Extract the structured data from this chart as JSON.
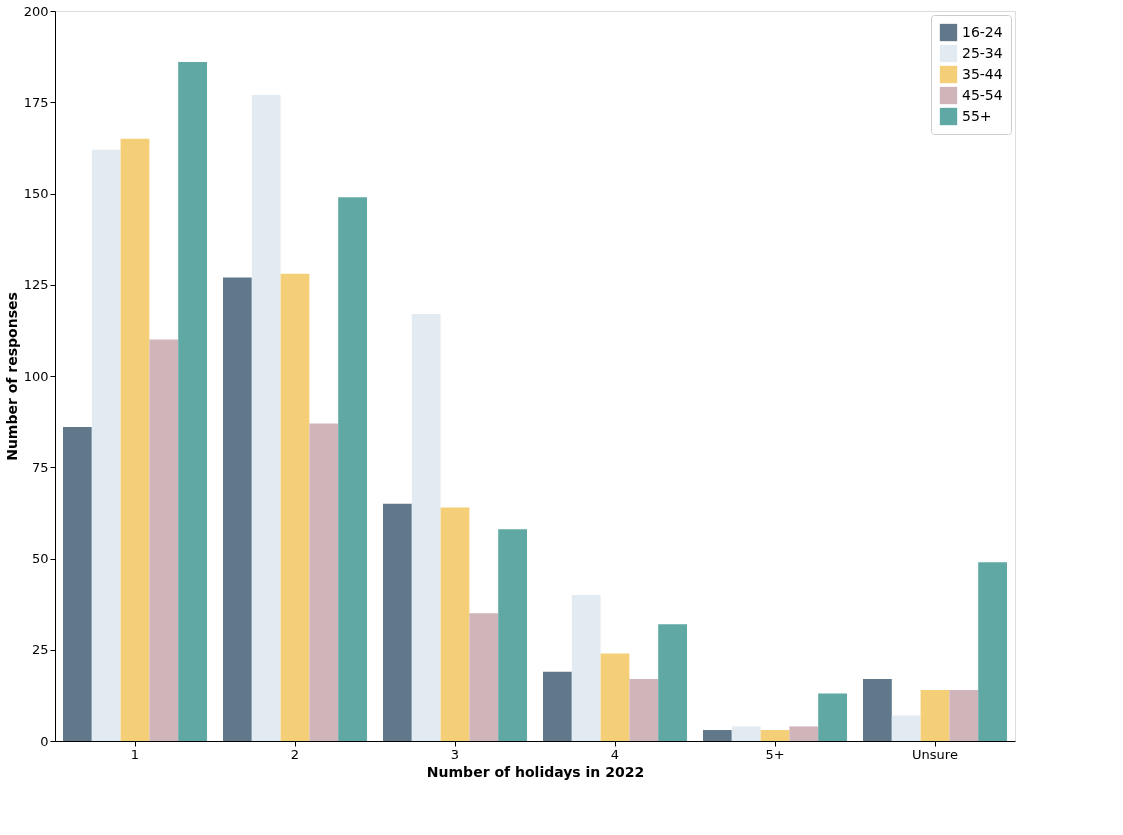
{
  "chart_data": {
    "type": "bar",
    "xlabel": "Number of holidays in 2022",
    "ylabel": "Number of responses",
    "categories": [
      "1",
      "2",
      "3",
      "4",
      "5+",
      "Unsure"
    ],
    "series": [
      {
        "name": "16-24",
        "color": "#607889",
        "values": [
          86,
          127,
          65,
          19,
          3,
          17
        ]
      },
      {
        "name": "25-34",
        "color": "#e3ebf2",
        "values": [
          162,
          177,
          117,
          40,
          4,
          7
        ]
      },
      {
        "name": "35-44",
        "color": "#f4cf78",
        "values": [
          165,
          128,
          64,
          24,
          3,
          14
        ]
      },
      {
        "name": "45-54",
        "color": "#cfb4ba",
        "values": [
          110,
          87,
          35,
          17,
          4,
          14
        ]
      },
      {
        "name": "55+",
        "color": "#5fa8a3",
        "values": [
          186,
          149,
          58,
          32,
          13,
          49
        ]
      }
    ],
    "ylim": [
      0,
      200
    ],
    "yticks": [
      0,
      25,
      50,
      75,
      100,
      125,
      150,
      175,
      200
    ],
    "grid": false,
    "legend": "top right"
  }
}
